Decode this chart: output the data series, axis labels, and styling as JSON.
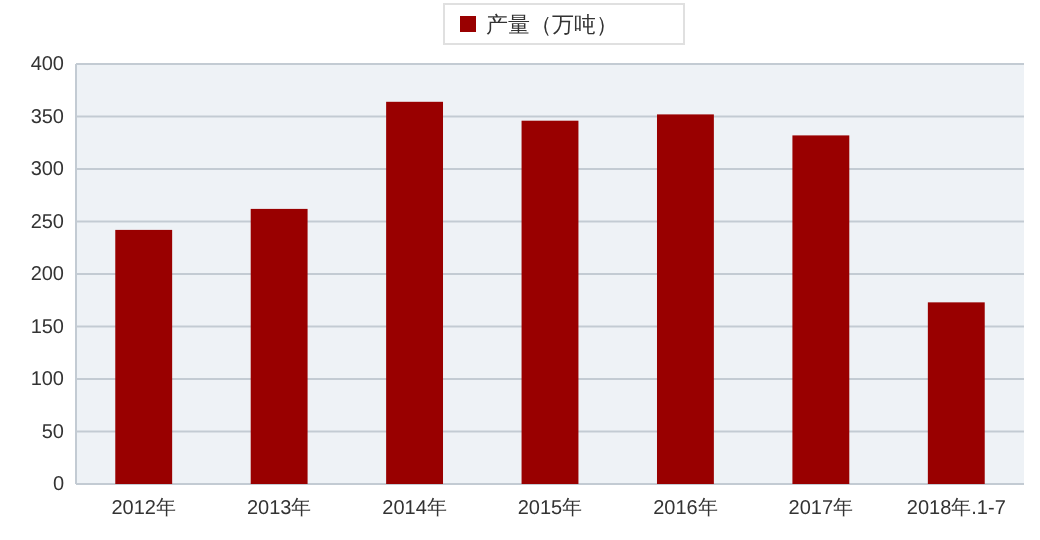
{
  "chart_data": {
    "type": "bar",
    "categories": [
      "2012年",
      "2013年",
      "2014年",
      "2015年",
      "2016年",
      "2017年",
      "2018年.1-7"
    ],
    "series": [
      {
        "name": "产量（万吨）",
        "color": "#990000",
        "values": [
          242,
          262,
          364,
          346,
          352,
          332,
          173
        ]
      }
    ],
    "ylim": [
      0,
      400
    ],
    "yticks": [
      0,
      50,
      100,
      150,
      200,
      250,
      300,
      350,
      400
    ],
    "grid": "y",
    "legend": "top"
  }
}
